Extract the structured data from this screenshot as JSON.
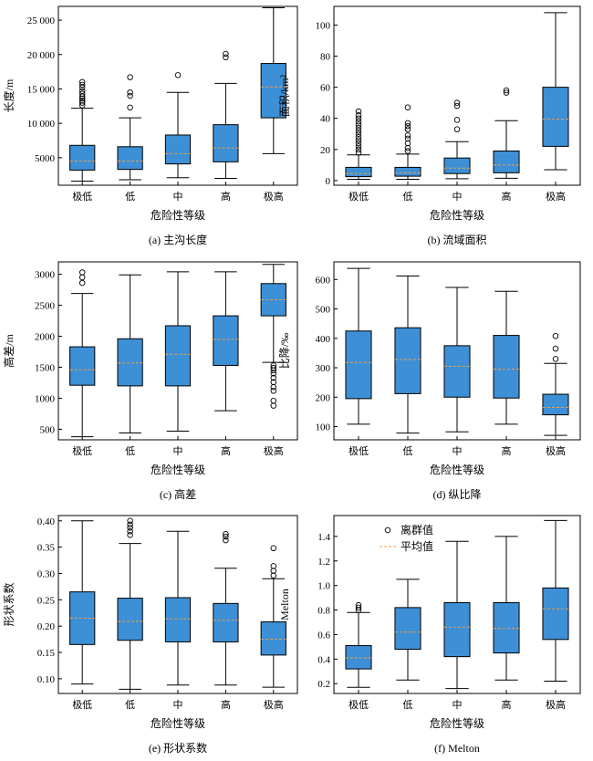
{
  "colors": {
    "box_fill": "#3d8fd6",
    "median": "#f0a040",
    "axis": "#000000",
    "outlier": "#000000"
  },
  "legend": {
    "outlier_label": "离群值",
    "mean_label": "平均值"
  },
  "chart_data": [
    {
      "type": "box",
      "caption": "(a) 主沟长度",
      "xlabel": "危险性等级",
      "ylabel": "长度/m",
      "categories": [
        "极低",
        "低",
        "中",
        "高",
        "极高"
      ],
      "ylim": [
        1000,
        27000
      ],
      "yticks": [
        5000,
        10000,
        15000,
        20000,
        25000
      ],
      "ytick_labels": [
        "5000",
        "10 000",
        "15 000",
        "20 000",
        "25 000"
      ],
      "boxes": [
        {
          "low": 1600,
          "q1": 3200,
          "median": 4500,
          "q3": 6800,
          "high": 12200,
          "outliers": [
            12600,
            13000,
            13300,
            13600,
            13900,
            14300,
            14700,
            15200,
            15600,
            16000
          ]
        },
        {
          "low": 1800,
          "q1": 3300,
          "median": 4500,
          "q3": 6600,
          "high": 10800,
          "outliers": [
            12300,
            14000,
            14500,
            16700
          ]
        },
        {
          "low": 2100,
          "q1": 4100,
          "median": 5600,
          "q3": 8300,
          "high": 14500,
          "outliers": [
            17000
          ]
        },
        {
          "low": 2000,
          "q1": 4400,
          "median": 6400,
          "q3": 9800,
          "high": 15800,
          "outliers": [
            19600,
            20100
          ]
        },
        {
          "low": 5600,
          "q1": 10800,
          "median": 15300,
          "q3": 18700,
          "high": 26800,
          "outliers": []
        }
      ]
    },
    {
      "type": "box",
      "caption": "(b) 流域面积",
      "xlabel": "危险性等级",
      "ylabel": "面积/km²",
      "categories": [
        "极低",
        "低",
        "中",
        "高",
        "极高"
      ],
      "ylim": [
        -3,
        112
      ],
      "yticks": [
        0,
        20,
        40,
        60,
        80,
        100
      ],
      "ytick_labels": [
        "0",
        "20",
        "40",
        "60",
        "80",
        "100"
      ],
      "boxes": [
        {
          "low": 0.8,
          "q1": 2.5,
          "median": 4.5,
          "q3": 8.5,
          "high": 16.5,
          "outliers": [
            18,
            20,
            22,
            24,
            26,
            28,
            30,
            32,
            34,
            36,
            38,
            40,
            42,
            44.5
          ]
        },
        {
          "low": 0.8,
          "q1": 2.8,
          "median": 5,
          "q3": 8.5,
          "high": 17,
          "outliers": [
            19,
            21,
            24,
            27,
            29,
            33,
            35,
            37,
            47
          ]
        },
        {
          "low": 1.2,
          "q1": 4.5,
          "median": 8,
          "q3": 14.5,
          "high": 25,
          "outliers": [
            33,
            39,
            48,
            50
          ]
        },
        {
          "low": 1.5,
          "q1": 5,
          "median": 10,
          "q3": 19,
          "high": 38.5,
          "outliers": [
            56.5,
            58
          ]
        },
        {
          "low": 7,
          "q1": 22,
          "median": 39.5,
          "q3": 60,
          "high": 108,
          "outliers": []
        }
      ]
    },
    {
      "type": "box",
      "caption": "(c) 高差",
      "xlabel": "危险性等级",
      "ylabel": "高差/m",
      "categories": [
        "极低",
        "低",
        "中",
        "高",
        "极高"
      ],
      "ylim": [
        330,
        3200
      ],
      "yticks": [
        500,
        1000,
        1500,
        2000,
        2500,
        3000
      ],
      "ytick_labels": [
        "500",
        "1000",
        "1500",
        "2000",
        "2500",
        "3000"
      ],
      "boxes": [
        {
          "low": 380,
          "q1": 1210,
          "median": 1460,
          "q3": 1830,
          "high": 2690,
          "outliers": [
            2860,
            2950,
            3030
          ]
        },
        {
          "low": 440,
          "q1": 1200,
          "median": 1570,
          "q3": 1960,
          "high": 2990,
          "outliers": []
        },
        {
          "low": 470,
          "q1": 1200,
          "median": 1710,
          "q3": 2170,
          "high": 3040,
          "outliers": []
        },
        {
          "low": 800,
          "q1": 1530,
          "median": 1950,
          "q3": 2330,
          "high": 3040,
          "outliers": []
        },
        {
          "low": 1580,
          "q1": 2330,
          "median": 2590,
          "q3": 2850,
          "high": 3160,
          "outliers": [
            1530,
            1490,
            1450,
            1400,
            1330,
            1260,
            1180,
            1120,
            960,
            880
          ]
        }
      ]
    },
    {
      "type": "box",
      "caption": "(d) 纵比降",
      "xlabel": "危险性等级",
      "ylabel": "比降/‰",
      "categories": [
        "极低",
        "低",
        "中",
        "高",
        "极高"
      ],
      "ylim": [
        55,
        660
      ],
      "yticks": [
        100,
        200,
        300,
        400,
        500,
        600
      ],
      "ytick_labels": [
        "100",
        "200",
        "300",
        "400",
        "500",
        "600"
      ],
      "boxes": [
        {
          "low": 108,
          "q1": 195,
          "median": 318,
          "q3": 425,
          "high": 638,
          "outliers": []
        },
        {
          "low": 78,
          "q1": 212,
          "median": 328,
          "q3": 436,
          "high": 612,
          "outliers": []
        },
        {
          "low": 82,
          "q1": 200,
          "median": 305,
          "q3": 375,
          "high": 573,
          "outliers": []
        },
        {
          "low": 108,
          "q1": 197,
          "median": 295,
          "q3": 410,
          "high": 560,
          "outliers": []
        },
        {
          "low": 70,
          "q1": 140,
          "median": 165,
          "q3": 210,
          "high": 315,
          "outliers": [
            330,
            365,
            408
          ]
        }
      ]
    },
    {
      "type": "box",
      "caption": "(e) 形状系数",
      "xlabel": "危险性等级",
      "ylabel": "形状系数",
      "categories": [
        "极低",
        "低",
        "中",
        "高",
        "极高"
      ],
      "ylim": [
        0.072,
        0.41
      ],
      "yticks": [
        0.1,
        0.15,
        0.2,
        0.25,
        0.3,
        0.35,
        0.4
      ],
      "ytick_labels": [
        "0.10",
        "0.15",
        "0.20",
        "0.25",
        "0.30",
        "0.35",
        "0.40"
      ],
      "boxes": [
        {
          "low": 0.09,
          "q1": 0.165,
          "median": 0.215,
          "q3": 0.265,
          "high": 0.4,
          "outliers": []
        },
        {
          "low": 0.08,
          "q1": 0.173,
          "median": 0.209,
          "q3": 0.253,
          "high": 0.357,
          "outliers": [
            0.373,
            0.38,
            0.387,
            0.393,
            0.4
          ]
        },
        {
          "low": 0.088,
          "q1": 0.17,
          "median": 0.214,
          "q3": 0.254,
          "high": 0.38,
          "outliers": []
        },
        {
          "low": 0.088,
          "q1": 0.17,
          "median": 0.211,
          "q3": 0.243,
          "high": 0.31,
          "outliers": [
            0.363,
            0.37,
            0.375
          ]
        },
        {
          "low": 0.084,
          "q1": 0.145,
          "median": 0.175,
          "q3": 0.208,
          "high": 0.29,
          "outliers": [
            0.296,
            0.305,
            0.314,
            0.348
          ]
        }
      ]
    },
    {
      "type": "box",
      "caption": "(f) Melton",
      "xlabel": "危险性等级",
      "ylabel": "Melton",
      "categories": [
        "极低",
        "低",
        "中",
        "高",
        "极高"
      ],
      "ylim": [
        0.12,
        1.57
      ],
      "yticks": [
        0.2,
        0.4,
        0.6,
        0.8,
        1.0,
        1.2,
        1.4
      ],
      "ytick_labels": [
        "0.2",
        "0.4",
        "0.6",
        "0.8",
        "1.0",
        "1.2",
        "1.4"
      ],
      "boxes": [
        {
          "low": 0.17,
          "q1": 0.32,
          "median": 0.41,
          "q3": 0.51,
          "high": 0.78,
          "outliers": [
            0.8,
            0.82,
            0.84
          ]
        },
        {
          "low": 0.23,
          "q1": 0.48,
          "median": 0.62,
          "q3": 0.82,
          "high": 1.05,
          "outliers": []
        },
        {
          "low": 0.16,
          "q1": 0.42,
          "median": 0.66,
          "q3": 0.86,
          "high": 1.36,
          "outliers": []
        },
        {
          "low": 0.23,
          "q1": 0.45,
          "median": 0.65,
          "q3": 0.86,
          "high": 1.4,
          "outliers": []
        },
        {
          "low": 0.22,
          "q1": 0.56,
          "median": 0.81,
          "q3": 0.98,
          "high": 1.53,
          "outliers": []
        }
      ]
    }
  ]
}
